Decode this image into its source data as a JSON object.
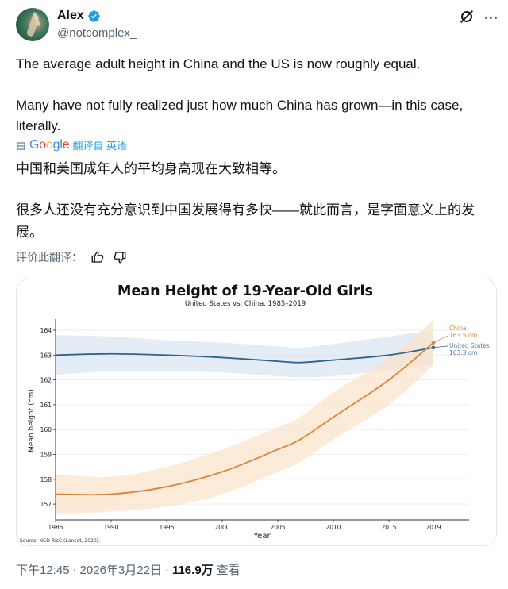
{
  "author": {
    "name": "Alex",
    "handle": "@notcomplex_",
    "verified": true,
    "verified_color": "#1d9bf0",
    "avatar_icon": "avatar-photo"
  },
  "header_actions": {
    "grok_icon": "grok-icon",
    "more_icon": "more-horizontal-icon"
  },
  "tweet": {
    "lines": [
      "The average adult height in China and the US is now roughly equal.",
      "Many have not fully realized just how much China has grown—in this case, literally."
    ]
  },
  "translation": {
    "by_prefix": "由",
    "provider": "Google",
    "translated_from": "翻译自 英语",
    "lines": [
      "中国和美国成年人的平均身高现在大致相等。",
      "很多人还没有充分意识到中国发展得有多快——就此而言，是字面意义上的发展。"
    ],
    "rate_label": "评价此翻译：",
    "thumbs_up_icon": "thumbs-up-icon",
    "thumbs_down_icon": "thumbs-down-icon"
  },
  "meta": {
    "time": "下午12:45",
    "separator": "·",
    "date": "2026年3月22日",
    "views_count": "116.9万",
    "views_label": "查看"
  },
  "chart_data": {
    "type": "line",
    "title": "Mean Height of 19-Year-Old Girls",
    "subtitle": "United States vs. China, 1985–2019",
    "xlabel": "Year",
    "ylabel": "Mean height (cm)",
    "source": "Source: NCD-RisC (Lancet, 2020).",
    "x_ticks": [
      "1985",
      "1990",
      "1995",
      "2000",
      "2005",
      "2010",
      "2015",
      "2019"
    ],
    "y_ticks": [
      "157",
      "158",
      "159",
      "160",
      "161",
      "162",
      "163",
      "164"
    ],
    "xlim": [
      1985,
      2022.2
    ],
    "ylim": [
      156.4,
      164.5
    ],
    "grid": "horizontal",
    "legend_position": "right-end-labels",
    "x": [
      1985,
      1990,
      1995,
      2000,
      2005,
      2007,
      2010,
      2015,
      2019
    ],
    "series": [
      {
        "name": "United States",
        "color": "#2e6590",
        "band_color": "#dbe7f1",
        "values": [
          163.0,
          163.05,
          163.0,
          162.9,
          162.75,
          162.7,
          162.8,
          163.0,
          163.3
        ],
        "band_lower": [
          162.2,
          162.35,
          162.35,
          162.3,
          162.15,
          162.1,
          162.15,
          162.4,
          162.6
        ],
        "band_upper": [
          163.8,
          163.75,
          163.6,
          163.5,
          163.35,
          163.3,
          163.45,
          163.75,
          164.0
        ],
        "end_label": "United States",
        "end_value": "163.3 cm"
      },
      {
        "name": "China",
        "color": "#d9853b",
        "band_color": "#fbe3c9",
        "values": [
          157.4,
          157.4,
          157.7,
          158.3,
          159.2,
          159.6,
          160.5,
          162.0,
          163.5
        ],
        "band_lower": [
          156.6,
          156.7,
          156.9,
          157.4,
          158.3,
          158.7,
          159.6,
          161.0,
          162.6
        ],
        "band_upper": [
          158.2,
          158.1,
          158.5,
          159.2,
          160.1,
          160.5,
          161.5,
          162.9,
          164.4
        ],
        "end_label": "China",
        "end_value": "163.5 cm"
      }
    ]
  }
}
